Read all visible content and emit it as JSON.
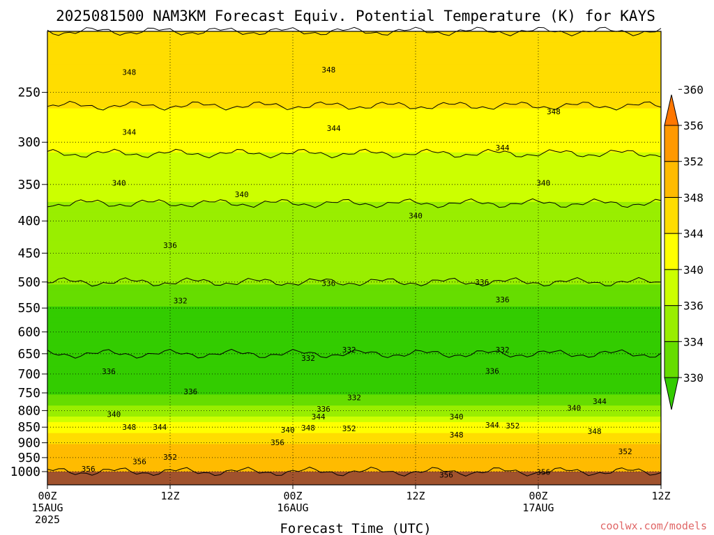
{
  "title": "2025081500 NAM3KM Forecast Equiv. Potential Temperature (K) for KAYS",
  "credit": "coolwx.com/models",
  "colors": {
    "ground": "#a0522d",
    "palette": [
      "#33cc00",
      "#66dd00",
      "#99ee00",
      "#ccff00",
      "#ffff00",
      "#ffdd00",
      "#ffbb00",
      "#ff9900",
      "#ff7700"
    ]
  },
  "chart_data": {
    "type": "heatmap",
    "title": "2025081500 NAM3KM Forecast Equiv. Potential Temperature (K) for KAYS",
    "xlabel": "Forecast Time (UTC)",
    "ylabel": "",
    "y_scale": "log",
    "y_inverted": true,
    "y_range_hpa": [
      1000,
      200
    ],
    "x_range_hours": [
      0,
      60
    ],
    "grid": true,
    "y_ticks": [
      "250",
      "300",
      "350",
      "400",
      "450",
      "500",
      "550",
      "600",
      "650",
      "700",
      "750",
      "800",
      "850",
      "900",
      "950",
      "1000"
    ],
    "x_ticks": [
      {
        "line1": "00Z",
        "line2": "15AUG",
        "line3": "2025"
      },
      {
        "line1": "12Z",
        "line2": "",
        "line3": ""
      },
      {
        "line1": "00Z",
        "line2": "16AUG",
        "line3": ""
      },
      {
        "line1": "12Z",
        "line2": "",
        "line3": ""
      },
      {
        "line1": "00Z",
        "line2": "17AUG",
        "line3": ""
      },
      {
        "line1": "12Z",
        "line2": "",
        "line3": ""
      }
    ],
    "colorbar": {
      "levels": [
        "330",
        "334",
        "336",
        "340",
        "344",
        "348",
        "352",
        "356",
        "360"
      ],
      "unit": "K"
    },
    "field_profile_hpa": [
      200,
      250,
      300,
      350,
      400,
      450,
      500,
      550,
      600,
      650,
      700,
      750,
      800,
      850,
      900,
      950,
      1000
    ],
    "field_profile_k": [
      352,
      349,
      345,
      341,
      339,
      337,
      336,
      334,
      333,
      332,
      333,
      334,
      337,
      346,
      352,
      355,
      356
    ],
    "contour_labels": [
      {
        "text": "348",
        "hour": 8.0,
        "p": 232
      },
      {
        "text": "348",
        "hour": 27.5,
        "p": 230
      },
      {
        "text": "348",
        "hour": 49.5,
        "p": 268
      },
      {
        "text": "344",
        "hour": 8.0,
        "p": 289
      },
      {
        "text": "344",
        "hour": 28.0,
        "p": 285
      },
      {
        "text": "344",
        "hour": 44.5,
        "p": 306
      },
      {
        "text": "340",
        "hour": 7.0,
        "p": 348
      },
      {
        "text": "340",
        "hour": 19.0,
        "p": 363
      },
      {
        "text": "340",
        "hour": 36.0,
        "p": 392
      },
      {
        "text": "340",
        "hour": 48.5,
        "p": 348
      },
      {
        "text": "336",
        "hour": 12.0,
        "p": 437
      },
      {
        "text": "336",
        "hour": 27.5,
        "p": 502
      },
      {
        "text": "336",
        "hour": 42.5,
        "p": 500
      },
      {
        "text": "336",
        "hour": 44.5,
        "p": 533
      },
      {
        "text": "332",
        "hour": 13.0,
        "p": 535
      },
      {
        "text": "332",
        "hour": 29.5,
        "p": 640
      },
      {
        "text": "332",
        "hour": 25.5,
        "p": 660
      },
      {
        "text": "332",
        "hour": 44.5,
        "p": 640
      },
      {
        "text": "336",
        "hour": 6.0,
        "p": 693
      },
      {
        "text": "336",
        "hour": 14.0,
        "p": 746
      },
      {
        "text": "336",
        "hour": 43.5,
        "p": 692
      },
      {
        "text": "332",
        "hour": 30.0,
        "p": 762
      },
      {
        "text": "336",
        "hour": 27.0,
        "p": 795
      },
      {
        "text": "344",
        "hour": 26.5,
        "p": 818
      },
      {
        "text": "340",
        "hour": 6.5,
        "p": 811
      },
      {
        "text": "340",
        "hour": 40.0,
        "p": 818
      },
      {
        "text": "340",
        "hour": 51.5,
        "p": 792
      },
      {
        "text": "344",
        "hour": 54.0,
        "p": 773
      },
      {
        "text": "344",
        "hour": 43.5,
        "p": 843
      },
      {
        "text": "352",
        "hour": 45.5,
        "p": 845
      },
      {
        "text": "348",
        "hour": 8.0,
        "p": 850
      },
      {
        "text": "344",
        "hour": 11.0,
        "p": 850
      },
      {
        "text": "340",
        "hour": 23.5,
        "p": 858
      },
      {
        "text": "348",
        "hour": 25.5,
        "p": 852
      },
      {
        "text": "352",
        "hour": 29.5,
        "p": 854
      },
      {
        "text": "348",
        "hour": 40.0,
        "p": 874
      },
      {
        "text": "348",
        "hour": 53.5,
        "p": 863
      },
      {
        "text": "356",
        "hour": 22.5,
        "p": 898
      },
      {
        "text": "352",
        "hour": 12.0,
        "p": 948
      },
      {
        "text": "352",
        "hour": 56.5,
        "p": 929
      },
      {
        "text": "356",
        "hour": 4.0,
        "p": 990
      },
      {
        "text": "356",
        "hour": 9.0,
        "p": 964
      },
      {
        "text": "356",
        "hour": 39.0,
        "p": 1011
      },
      {
        "text": "356",
        "hour": 48.5,
        "p": 1001
      }
    ]
  }
}
